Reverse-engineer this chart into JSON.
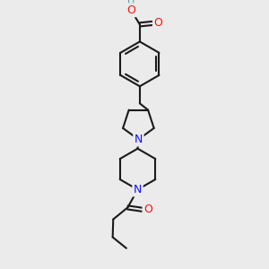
{
  "bg_color": "#ebebeb",
  "bond_color": "#1a1a1a",
  "N_color": "#1010ff",
  "O_color": "#ff1010",
  "H_color": "#50a0a0",
  "bond_width": 1.5,
  "font_size_atom": 9,
  "fig_size": [
    3.0,
    3.0
  ],
  "dpi": 100,
  "xlim": [
    0,
    10
  ],
  "ylim": [
    0,
    10
  ]
}
